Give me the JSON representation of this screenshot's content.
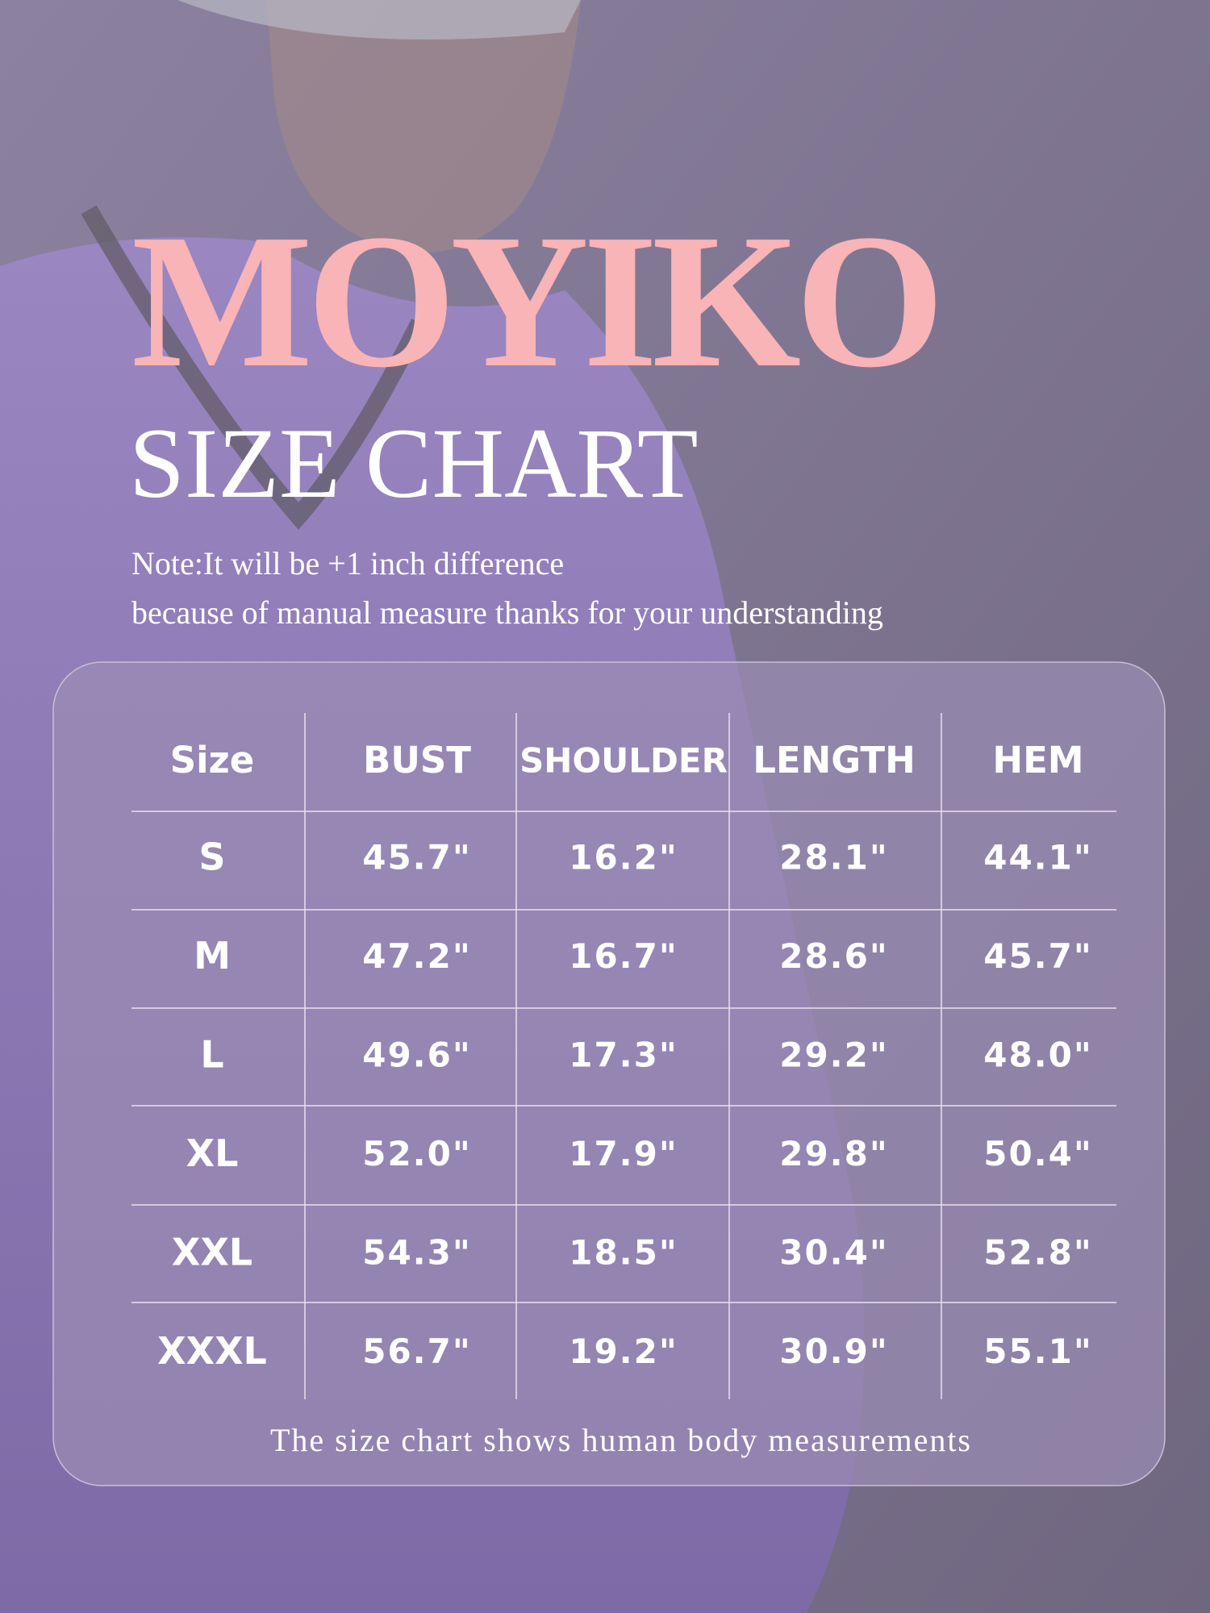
{
  "brand": "MOYIKO",
  "title": "SIZE CHART",
  "note": [
    "Note:It will be +1 inch difference",
    "because of manual measure thanks for your understanding"
  ],
  "table": {
    "columns": [
      "Size",
      "BUST",
      "SHOULDER",
      "LENGTH",
      "HEM"
    ],
    "rows": [
      [
        "S",
        "45.7\"",
        "16.2\"",
        "28.1\"",
        "44.1\""
      ],
      [
        "M",
        "47.2\"",
        "16.7\"",
        "28.6\"",
        "45.7\""
      ],
      [
        "L",
        "49.6\"",
        "17.3\"",
        "29.2\"",
        "48.0\""
      ],
      [
        "XL",
        "52.0\"",
        "17.9\"",
        "29.8\"",
        "50.4\""
      ],
      [
        "XXL",
        "54.3\"",
        "18.5\"",
        "30.4\"",
        "52.8\""
      ],
      [
        "XXXL",
        "56.7\"",
        "19.2\"",
        "30.9\"",
        "55.1\""
      ]
    ]
  },
  "footer": "The size chart shows human body measurements"
}
